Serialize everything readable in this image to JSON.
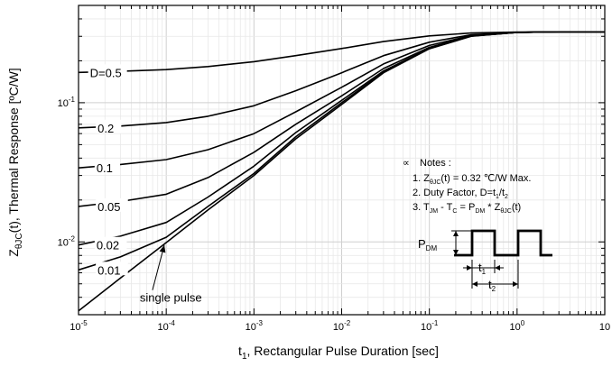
{
  "chart_data": {
    "type": "line",
    "title": "",
    "x_scale": "log",
    "y_scale": "log",
    "xlim": [
      1e-05,
      10
    ],
    "ylim": [
      0.003,
      0.5
    ],
    "grid": true,
    "xlabel": {
      "main": "t",
      "sub": "1",
      "rest": ", Rectangular Pulse Duration [sec]"
    },
    "ylabel": {
      "main": "Z",
      "sub": "θJC",
      "rest": "(t), Thermal Response [ºC/W]"
    },
    "x_ticks": [
      {
        "value": 1e-05,
        "base": "10",
        "exp": "-5"
      },
      {
        "value": 0.0001,
        "base": "10",
        "exp": "-4"
      },
      {
        "value": 0.001,
        "base": "10",
        "exp": "-3"
      },
      {
        "value": 0.01,
        "base": "10",
        "exp": "-2"
      },
      {
        "value": 0.1,
        "base": "10",
        "exp": "-1"
      },
      {
        "value": 1,
        "base": "10",
        "exp": "0"
      },
      {
        "value": 10,
        "base": "10",
        "exp": ""
      }
    ],
    "y_ticks": [
      {
        "value": 0.1,
        "base": "10",
        "exp": "-1"
      },
      {
        "value": 0.01,
        "base": "10",
        "exp": "-2"
      }
    ],
    "series": [
      {
        "name": "D=0.5",
        "x": [
          1e-05,
          3e-05,
          0.0001,
          0.0003,
          0.001,
          0.003,
          0.01,
          0.03,
          0.1,
          0.3,
          1,
          3,
          10
        ],
        "y": [
          0.165,
          0.168,
          0.173,
          0.182,
          0.197,
          0.218,
          0.245,
          0.275,
          0.302,
          0.317,
          0.322,
          0.323,
          0.323
        ]
      },
      {
        "name": "0.2",
        "x": [
          1e-05,
          3e-05,
          0.0001,
          0.0003,
          0.001,
          0.003,
          0.01,
          0.03,
          0.1,
          0.3,
          1,
          3,
          10
        ],
        "y": [
          0.066,
          0.068,
          0.072,
          0.08,
          0.095,
          0.122,
          0.164,
          0.218,
          0.272,
          0.308,
          0.32,
          0.323,
          0.323
        ]
      },
      {
        "name": "0.1",
        "x": [
          1e-05,
          3e-05,
          0.0001,
          0.0003,
          0.001,
          0.003,
          0.01,
          0.03,
          0.1,
          0.3,
          1,
          3,
          10
        ],
        "y": [
          0.034,
          0.036,
          0.039,
          0.046,
          0.06,
          0.086,
          0.129,
          0.19,
          0.258,
          0.304,
          0.32,
          0.323,
          0.323
        ]
      },
      {
        "name": "0.05",
        "x": [
          1e-05,
          3e-05,
          0.0001,
          0.0003,
          0.001,
          0.003,
          0.01,
          0.03,
          0.1,
          0.3,
          1,
          3,
          10
        ],
        "y": [
          0.018,
          0.0195,
          0.022,
          0.029,
          0.044,
          0.07,
          0.112,
          0.176,
          0.25,
          0.302,
          0.32,
          0.323,
          0.323
        ]
      },
      {
        "name": "0.02",
        "x": [
          1e-05,
          3e-05,
          0.0001,
          0.0003,
          0.001,
          0.003,
          0.01,
          0.03,
          0.1,
          0.3,
          1,
          3,
          10
        ],
        "y": [
          0.0095,
          0.011,
          0.0138,
          0.021,
          0.035,
          0.061,
          0.104,
          0.169,
          0.246,
          0.301,
          0.32,
          0.323,
          0.323
        ]
      },
      {
        "name": "0.01",
        "x": [
          1e-05,
          3e-05,
          0.0001,
          0.0003,
          0.001,
          0.003,
          0.01,
          0.03,
          0.1,
          0.3,
          1,
          3,
          10
        ],
        "y": [
          0.0063,
          0.0078,
          0.0108,
          0.018,
          0.031,
          0.057,
          0.1,
          0.166,
          0.245,
          0.301,
          0.32,
          0.323,
          0.323
        ]
      },
      {
        "name": "single pulse",
        "x": [
          1e-05,
          3e-05,
          0.0001,
          0.0003,
          0.001,
          0.003,
          0.01,
          0.03,
          0.1,
          0.3,
          1,
          3,
          10
        ],
        "y": [
          0.0032,
          0.0055,
          0.0099,
          0.017,
          0.03,
          0.055,
          0.097,
          0.164,
          0.244,
          0.3,
          0.32,
          0.323,
          0.323
        ]
      }
    ],
    "curve_labels": [
      {
        "text": "D=0.5",
        "x": 1.35e-05,
        "y": 0.165
      },
      {
        "text": "0.2",
        "x": 1.65e-05,
        "y": 0.066
      },
      {
        "text": "0.1",
        "x": 1.6e-05,
        "y": 0.034
      },
      {
        "text": "0.05",
        "x": 1.65e-05,
        "y": 0.018
      },
      {
        "text": "0.02",
        "x": 1.6e-05,
        "y": 0.0095
      },
      {
        "text": "0.01",
        "x": 1.65e-05,
        "y": 0.0063
      }
    ],
    "annotation": {
      "text": "single pulse",
      "x": 5e-05,
      "y": 0.004,
      "arrow_to_x": 9.5e-05,
      "arrow_to_y": 0.0095
    },
    "notes": {
      "header": "Notes :",
      "line1": "1. Z",
      "line1_sub": "θJC",
      "line1_rest": "(t) = 0.32 ℃/W Max.",
      "line2": "2. Duty Factor, D=t",
      "line2_sub1": "1",
      "line2_mid": "/t",
      "line2_sub2": "2",
      "line3_a": "3. T",
      "line3_sub_a": "JM",
      "line3_b": " - T",
      "line3_sub_b": "C",
      "line3_c": " = P",
      "line3_sub_c": "DM",
      "line3_d": " * Z",
      "line3_sub_d": "θJC",
      "line3_e": "(t)"
    },
    "inset": {
      "pdm_main": "P",
      "pdm_sub": "DM",
      "t1_main": "t",
      "t1_sub": "1",
      "t2_main": "t",
      "t2_sub": "2"
    }
  }
}
